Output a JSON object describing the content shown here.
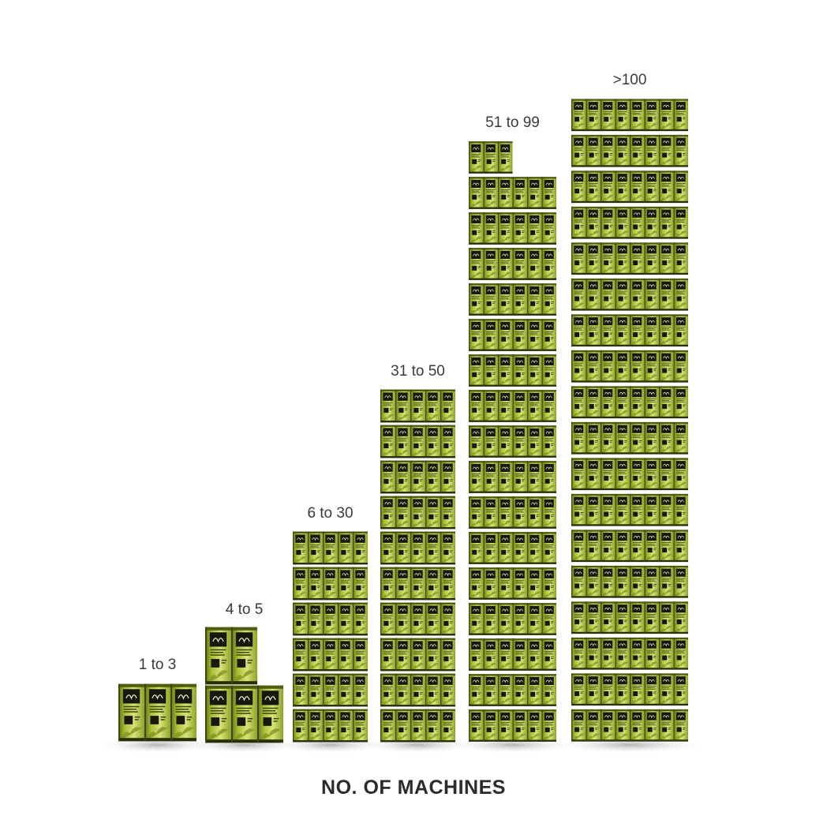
{
  "chart_data": {
    "type": "bar",
    "title": "",
    "xlabel": "NO. OF MACHINES",
    "ylabel": "",
    "categories": [
      "1 to 3",
      "4 to 5",
      "6 to 30",
      "31 to 50",
      "51 to 99",
      ">100"
    ],
    "series": [
      {
        "values": [
          3,
          5,
          30,
          50,
          99,
          144
        ]
      }
    ],
    "mark": "stacked vending-machine icons",
    "grid": false,
    "legend": "none",
    "colors": {
      "machine_body": "#9cb52a",
      "machine_light": "#d9e27a",
      "machine_dark": "#4e5d10",
      "screen": "#16190c",
      "shadow": "#bdbdbd",
      "label_text": "#3a3a3a",
      "axis_title_text": "#2b2b2b"
    }
  }
}
